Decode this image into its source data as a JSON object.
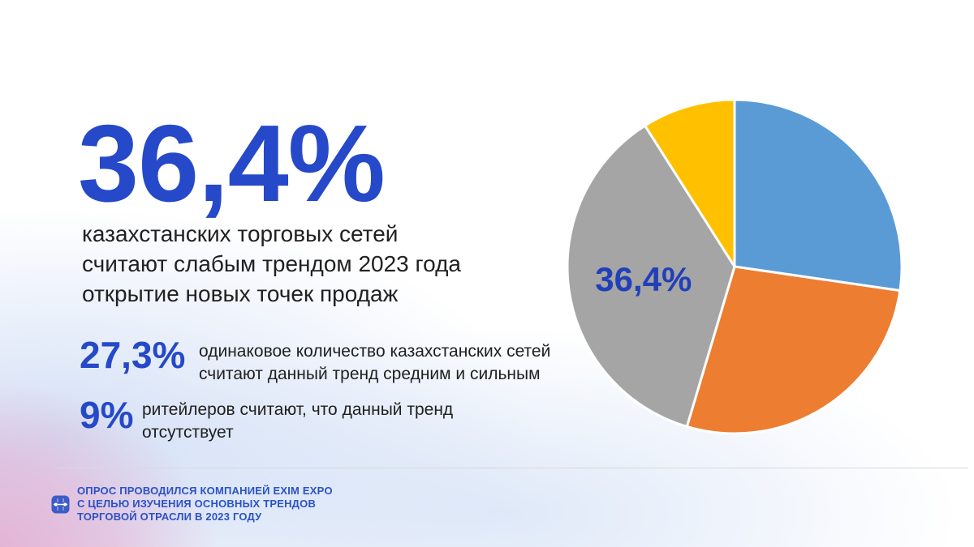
{
  "headline": {
    "value": "36,4%",
    "description": "казахстанских торговых сетей\nсчитают слабым трендом 2023 года\nоткрытие новых точек продаж"
  },
  "stats": [
    {
      "value": "27,3%",
      "description": "одинаковое количество казахстанских сетей\nсчитают данный тренд средним и сильным"
    },
    {
      "value": "9%",
      "description": "ритейлеров считают, что данный тренд\nотсутствует"
    }
  ],
  "footer": {
    "note": "ОПРОС ПРОВОДИЛСЯ КОМПАНИЕЙ EXIM EXPO\nС ЦЕЛЬЮ ИЗУЧЕНИЯ ОСНОВНЫХ ТРЕНДОВ\nТОРГОВОЙ ОТРАСЛИ В 2023 ГОДУ",
    "logo_icon": "exim-expo-logo"
  },
  "colors": {
    "accent_blue": "#2549C8",
    "pie_label_blue": "#2140B8",
    "footer_blue": "#2B52C5",
    "logo_blue": "#3B5BC8",
    "text_dark": "#212121",
    "divider_gray": "#D9D9D9",
    "bg_pink": "#E2A9CF",
    "bg_blue": "#B0C6EE"
  },
  "chart_data": {
    "type": "pie",
    "title": "",
    "start_angle_deg": 0,
    "direction": "clockwise",
    "stroke_color": "#FFFFFF",
    "label_color": "#2140B8",
    "label_radius_fraction": 0.55,
    "slices": [
      {
        "value": 27.3,
        "color": "#5B9BD5",
        "label": ""
      },
      {
        "value": 27.3,
        "color": "#ED7D31",
        "label": ""
      },
      {
        "value": 36.4,
        "color": "#A5A5A5",
        "label": "36,4%"
      },
      {
        "value": 9.0,
        "color": "#FFC000",
        "label": ""
      }
    ]
  }
}
